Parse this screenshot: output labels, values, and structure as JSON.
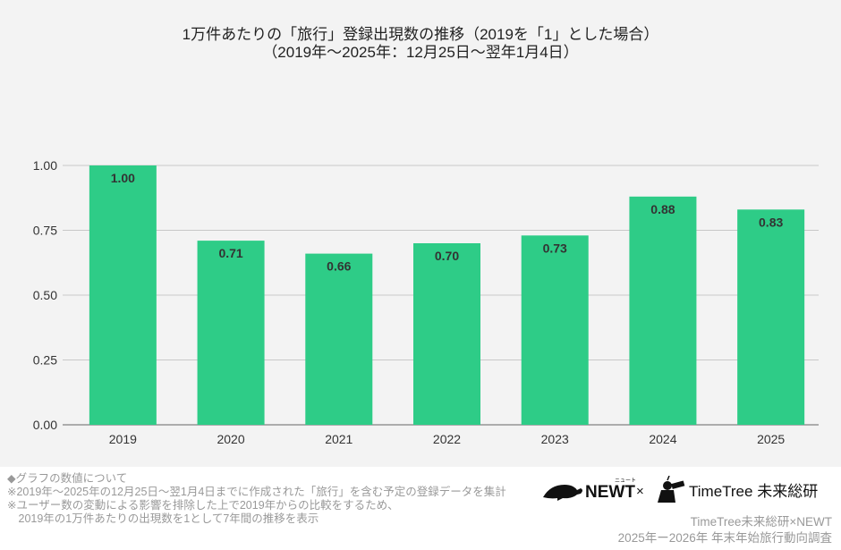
{
  "chart_data": {
    "type": "bar",
    "title": "1万件あたりの「旅行」登録出現数の推移（2019を「1」とした場合）",
    "subtitle": "（2019年〜2025年：12月25日〜翌年1月4日）",
    "categories": [
      "2019",
      "2020",
      "2021",
      "2022",
      "2023",
      "2024",
      "2025"
    ],
    "values": [
      1.0,
      0.71,
      0.66,
      0.7,
      0.73,
      0.88,
      0.83
    ],
    "data_labels": [
      "1.00",
      "0.71",
      "0.66",
      "0.70",
      "0.73",
      "0.88",
      "0.83"
    ],
    "y_ticks": [
      "0.00",
      "0.25",
      "0.50",
      "0.75",
      "1.00"
    ],
    "ylim": [
      0,
      1.0
    ],
    "xlabel": "",
    "ylabel": "",
    "grid": true,
    "bar_color": "#2ecc87"
  },
  "notes": [
    "◆グラフの数値について",
    "※2019年〜2025年の12月25日〜翌1月4日までに作成された「旅行」を含む予定の登録データを集計",
    "※ユーザー数の変動による影響を排除した上で2019年からの比較をするため、",
    "　2019年の1万件あたりの出現数を1として7年間の推移を表示"
  ],
  "logos": {
    "newt": "NEWT",
    "newt_ruby": "ニュート",
    "times": "×",
    "timetree": "TimeTree 未来総研"
  },
  "credit": {
    "line1": "TimeTree未来総研×NEWT",
    "line2": "2025年ー2026年 年末年始旅行動向調査"
  }
}
